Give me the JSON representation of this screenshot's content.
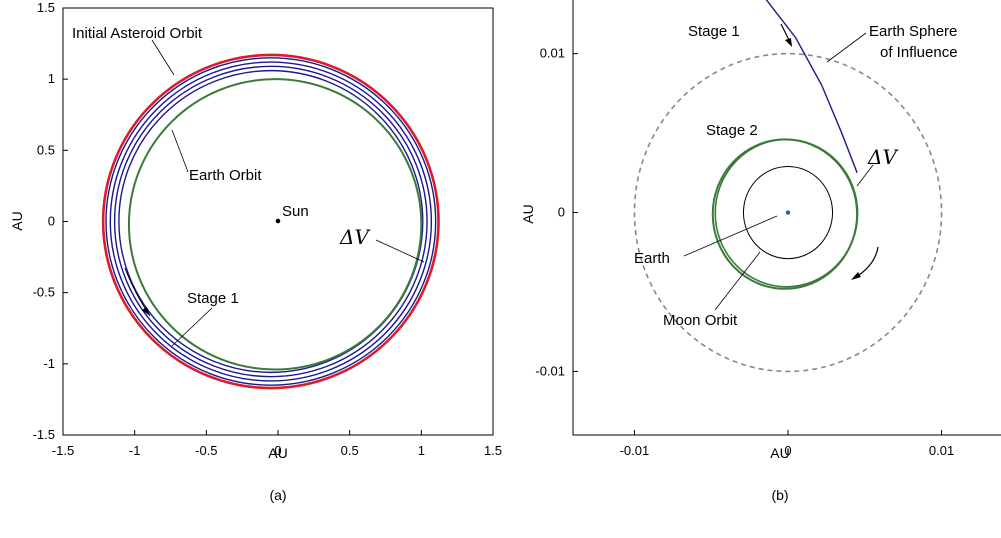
{
  "colors": {
    "asteroid_orbit": "#dd1c2a",
    "transfer": "#1a1a8c",
    "earth_orbit": "#3a7a3a",
    "sphere": "#888888",
    "axis": "#000000"
  },
  "chart_data": [
    {
      "id": "a",
      "type": "line",
      "subcaption": "(a)",
      "xlabel": "AU",
      "ylabel": "AU",
      "xlim": [
        -1.5,
        1.5
      ],
      "ylim": [
        -1.5,
        1.5
      ],
      "xticks": [
        -1.5,
        -1,
        -0.5,
        0,
        0.5,
        1,
        1.5
      ],
      "xtick_labels": [
        "-1.5",
        "-1",
        "-0.5",
        "0",
        "0.5",
        "1",
        "1.5"
      ],
      "yticks": [
        1.5,
        1,
        0.5,
        0,
        -0.5,
        -1,
        -1.5
      ],
      "ytick_labels": [
        "1.5",
        "1",
        "0.5",
        "0",
        "-0.5",
        "-1",
        "-1.5"
      ],
      "series": [
        {
          "name": "Initial Asteroid Orbit",
          "center": [
            -0.05,
            0
          ],
          "radius": 1.17,
          "color_key": "asteroid_orbit"
        },
        {
          "name": "",
          "center": [
            -0.05,
            0
          ],
          "radius": 1.15,
          "color_key": "transfer"
        },
        {
          "name": "",
          "center": [
            -0.05,
            0
          ],
          "radius": 1.12,
          "color_key": "transfer"
        },
        {
          "name": "",
          "center": [
            -0.05,
            0
          ],
          "radius": 1.09,
          "color_key": "transfer"
        },
        {
          "name": "",
          "center": [
            -0.05,
            0
          ],
          "radius": 1.06,
          "color_key": "transfer"
        },
        {
          "name": "Earth Orbit",
          "center": [
            -0.02,
            -0.02
          ],
          "radius": 1.02,
          "color_key": "earth_orbit"
        }
      ],
      "points": [
        {
          "name": "Sun",
          "x": 0,
          "y": 0
        }
      ],
      "annotations": {
        "initial_orbit": "Initial Asteroid Orbit",
        "earth_orbit": "Earth Orbit",
        "sun": "Sun",
        "delta_v": "ΔV",
        "stage1": "Stage 1"
      }
    },
    {
      "id": "b",
      "type": "line",
      "subcaption": "(b)",
      "xlabel": "AU",
      "ylabel": "AU",
      "xlim": [
        -0.014,
        0.014
      ],
      "ylim": [
        -0.014,
        0.0135
      ],
      "xticks": [
        -0.01,
        0,
        0.01
      ],
      "xtick_labels": [
        "-0.01",
        "0",
        "0.01"
      ],
      "yticks": [
        0.01,
        0,
        -0.01
      ],
      "ytick_labels": [
        "0.01",
        "0",
        "-0.01"
      ],
      "series": [
        {
          "name": "Earth Sphere of Influence",
          "center": [
            0,
            0
          ],
          "radius": 0.01,
          "color_key": "sphere",
          "dashed": true
        },
        {
          "name": "Moon Orbit",
          "center": [
            0,
            0
          ],
          "radius": 0.0029,
          "color_key": "axis"
        },
        {
          "name": "Stage 2",
          "center": [
            -0.0002,
            -0.0001
          ],
          "radius": 0.0047,
          "color_key": "earth_orbit"
        },
        {
          "name": "Stage 1",
          "color_key": "transfer",
          "x": [
            -0.0015,
            0.0005,
            0.0022,
            0.0035,
            0.0045
          ],
          "y": [
            0.0135,
            0.011,
            0.008,
            0.005,
            0.0025
          ]
        }
      ],
      "points": [
        {
          "name": "Earth",
          "x": 0,
          "y": 0
        }
      ],
      "annotations": {
        "stage1": "Stage 1",
        "sphere_line1": "Earth Sphere",
        "sphere_line2": "of Influence",
        "stage2": "Stage 2",
        "delta_v": "ΔV",
        "earth": "Earth",
        "moon_orbit": "Moon Orbit"
      }
    }
  ]
}
